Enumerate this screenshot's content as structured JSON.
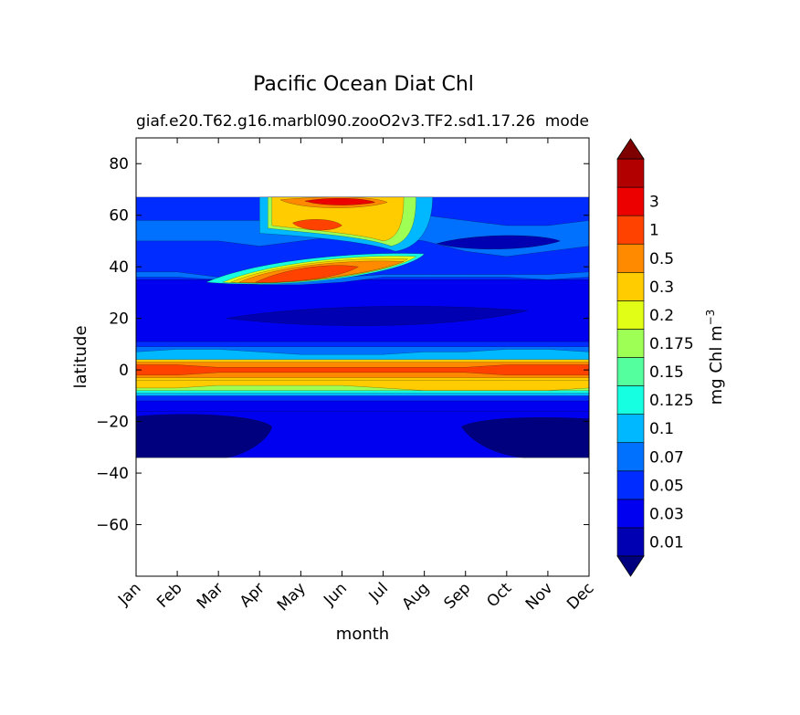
{
  "chart_data": {
    "type": "heatmap",
    "title": "Pacific Ocean Diat Chl",
    "subtitle_left": "giaf.e20.T62.g16.marbl090.zooO2v3.TF2.sd1.17.26",
    "subtitle_right": "mode",
    "xlabel": "month",
    "ylabel": "latitude",
    "x_categories": [
      "Jan",
      "Feb",
      "Mar",
      "Apr",
      "May",
      "Jun",
      "Jul",
      "Aug",
      "Sep",
      "Oct",
      "Nov",
      "Dec"
    ],
    "ylim": [
      -80,
      90
    ],
    "y_ticks": [
      {
        "value": 80,
        "label": "80"
      },
      {
        "value": 60,
        "label": "60"
      },
      {
        "value": 40,
        "label": "40"
      },
      {
        "value": 20,
        "label": "20"
      },
      {
        "value": 0,
        "label": "0"
      },
      {
        "value": -20,
        "label": "−20"
      },
      {
        "value": -40,
        "label": "−40"
      },
      {
        "value": -60,
        "label": "−60"
      }
    ],
    "data_lat_range": [
      -34,
      67
    ],
    "colorbar": {
      "label_main": "mg Chl m",
      "label_sup": "−3",
      "levels": [
        "0.01",
        "0.03",
        "0.05",
        "0.07",
        "0.1",
        "0.125",
        "0.15",
        "0.175",
        "0.2",
        "0.3",
        "0.5",
        "1",
        "3"
      ],
      "colors": [
        "#00007f",
        "#0000b2",
        "#0000f0",
        "#002cff",
        "#0070ff",
        "#00b8ff",
        "#16ffe1",
        "#54ff9e",
        "#9eff54",
        "#e1ff16",
        "#ffcc00",
        "#ff8a00",
        "#ff4200",
        "#ec0000",
        "#b20000",
        "#7f0000"
      ],
      "extend": "both"
    },
    "field": {
      "description": "Diatom chlorophyll climatology contoured by month and latitude",
      "rows": [
        {
          "lat_range": [
            -34,
            -18
          ],
          "level_index": 1,
          "months": "Jan-Apr, Oct-Dec"
        },
        {
          "lat_range": [
            -34,
            -10
          ],
          "level_index": 2,
          "months": "Apr-Oct"
        },
        {
          "lat_range": [
            -10,
            -4
          ],
          "level_index": 8,
          "months": "Jan-Dec"
        },
        {
          "lat_range": [
            -2,
            1
          ],
          "level_index": 13,
          "months": "Jan-Dec"
        },
        {
          "lat_range": [
            3,
            9
          ],
          "level_index": 5,
          "months": "Jan-Dec"
        },
        {
          "lat_range": [
            9,
            35
          ],
          "level_index": 2,
          "months": "Jan-Dec"
        },
        {
          "lat_range": [
            32,
            45
          ],
          "level_index": 13,
          "months": "Apr-Jul"
        },
        {
          "lat_range": [
            52,
            57
          ],
          "level_index": 12,
          "months": "May-Jun"
        },
        {
          "lat_range": [
            62,
            67
          ],
          "level_index": 13,
          "months": "Jun-Jul"
        }
      ]
    }
  }
}
